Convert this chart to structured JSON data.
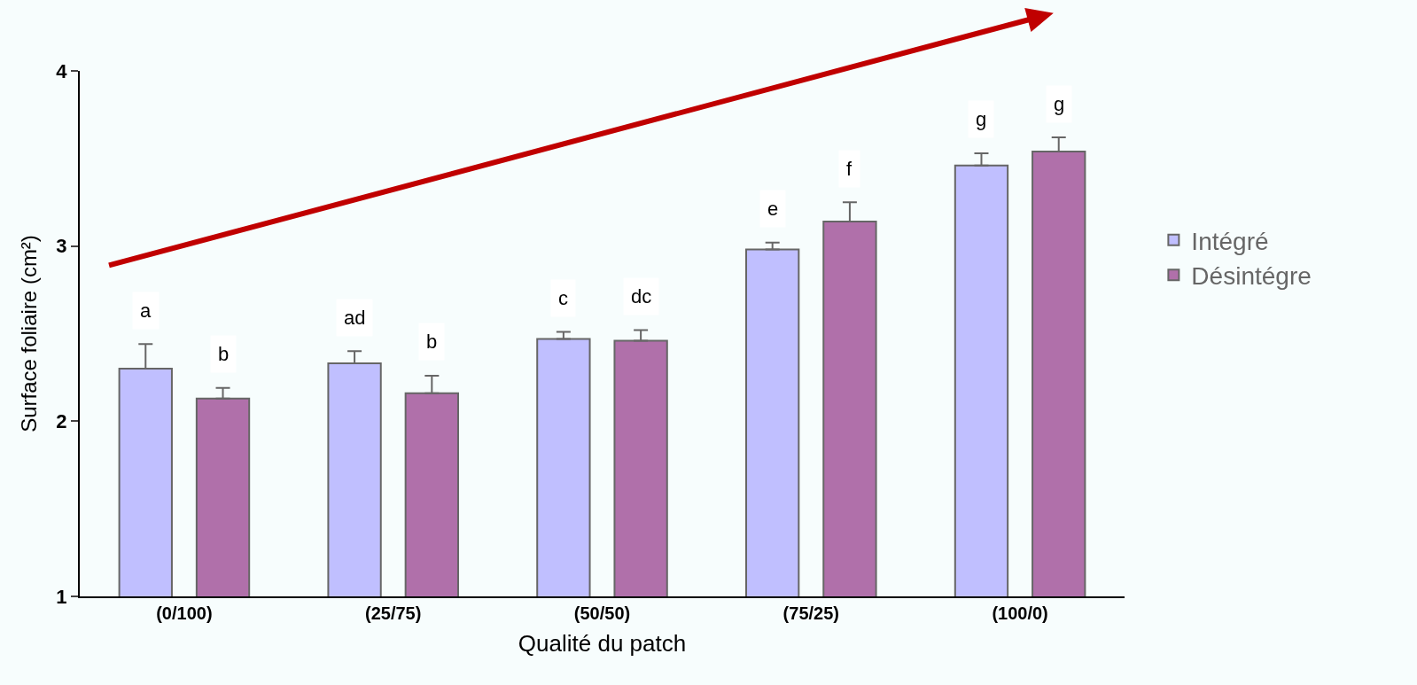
{
  "chart_data": {
    "type": "bar",
    "xlabel": "Qualité du patch",
    "ylabel": "Surface foliaire (cm²)",
    "categories": [
      "(0/100)",
      "(25/75)",
      "(50/50)",
      "(75/25)",
      "(100/0)"
    ],
    "series": [
      {
        "name": "Intégré",
        "color": "#c0bfff",
        "values": [
          2.3,
          2.33,
          2.47,
          2.98,
          3.46
        ],
        "errors": [
          [
            2.3,
            2.44
          ],
          [
            2.33,
            2.4
          ],
          [
            2.47,
            2.51
          ],
          [
            2.98,
            3.02
          ],
          [
            3.46,
            3.53
          ]
        ],
        "value_labels": [
          "a",
          "ad",
          "c",
          "e",
          "g"
        ]
      },
      {
        "name": "Désintégre",
        "color": "#b070aa",
        "values": [
          2.13,
          2.16,
          2.46,
          3.14,
          3.54
        ],
        "errors": [
          [
            2.13,
            2.19
          ],
          [
            2.16,
            2.26
          ],
          [
            2.46,
            2.52
          ],
          [
            3.14,
            3.25
          ],
          [
            3.54,
            3.62
          ]
        ],
        "value_labels": [
          "b",
          "b",
          "dc",
          "f",
          "g"
        ]
      }
    ],
    "ylim": [
      1,
      4
    ],
    "yticks": [
      1,
      2,
      3,
      4
    ],
    "grid": false,
    "legend": "right"
  }
}
